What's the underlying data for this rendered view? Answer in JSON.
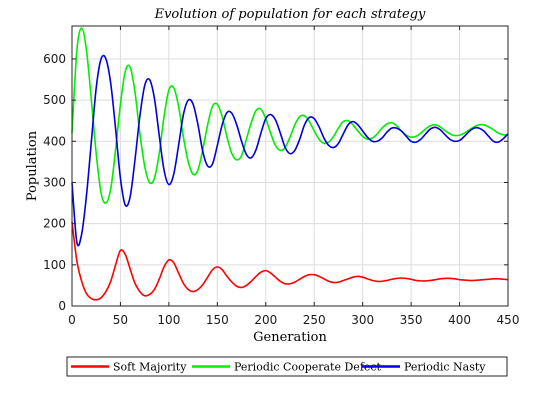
{
  "chart_data": {
    "type": "line",
    "title": "Evolution of population for each strategy",
    "xlabel": "Generation",
    "ylabel": "Population",
    "xlim": [
      0,
      450
    ],
    "ylim": [
      0,
      680
    ],
    "xticks": [
      0,
      50,
      100,
      150,
      200,
      250,
      300,
      350,
      400,
      450
    ],
    "yticks": [
      0,
      100,
      200,
      300,
      400,
      500,
      600
    ],
    "grid": true,
    "legend_position": "bottom",
    "series": [
      {
        "name": "Soft Majority",
        "color": "#ff0000",
        "x": [
          0,
          5,
          10,
          15,
          20,
          25,
          30,
          35,
          40,
          45,
          50,
          55,
          60,
          65,
          70,
          75,
          80,
          85,
          90,
          95,
          100,
          105,
          110,
          115,
          120,
          125,
          130,
          135,
          140,
          145,
          150,
          155,
          160,
          165,
          170,
          175,
          180,
          185,
          190,
          195,
          200,
          205,
          210,
          215,
          220,
          225,
          230,
          235,
          240,
          245,
          250,
          255,
          260,
          265,
          270,
          275,
          280,
          285,
          290,
          295,
          300,
          305,
          310,
          315,
          320,
          325,
          330,
          335,
          340,
          345,
          350,
          355,
          360,
          365,
          370,
          375,
          380,
          385,
          390,
          395,
          400,
          405,
          410,
          415,
          420,
          425,
          430,
          435,
          440,
          445,
          450
        ],
        "values": [
          205,
          110,
          60,
          30,
          18,
          15,
          20,
          35,
          60,
          100,
          135,
          125,
          90,
          55,
          35,
          25,
          28,
          40,
          65,
          95,
          112,
          105,
          80,
          55,
          40,
          35,
          40,
          52,
          70,
          88,
          95,
          88,
          72,
          58,
          48,
          45,
          50,
          60,
          72,
          82,
          86,
          80,
          70,
          60,
          54,
          54,
          58,
          65,
          72,
          76,
          76,
          72,
          66,
          60,
          57,
          58,
          62,
          66,
          70,
          72,
          70,
          66,
          62,
          60,
          60,
          62,
          65,
          67,
          68,
          67,
          65,
          62,
          61,
          61,
          62,
          64,
          66,
          67,
          67,
          66,
          64,
          63,
          62,
          62,
          63,
          64,
          65,
          66,
          66,
          65,
          64
        ]
      },
      {
        "name": "Periodic Cooperate Defect",
        "color": "#00ee00",
        "x": [
          0,
          5,
          10,
          15,
          20,
          25,
          30,
          35,
          40,
          45,
          50,
          55,
          60,
          65,
          70,
          75,
          80,
          85,
          90,
          95,
          100,
          105,
          110,
          115,
          120,
          125,
          130,
          135,
          140,
          145,
          150,
          155,
          160,
          165,
          170,
          175,
          180,
          185,
          190,
          195,
          200,
          205,
          210,
          215,
          220,
          225,
          230,
          235,
          240,
          245,
          250,
          255,
          260,
          265,
          270,
          275,
          280,
          285,
          290,
          295,
          300,
          305,
          310,
          315,
          320,
          325,
          330,
          335,
          340,
          345,
          350,
          355,
          360,
          365,
          370,
          375,
          380,
          385,
          390,
          395,
          400,
          405,
          410,
          415,
          420,
          425,
          430,
          435,
          440,
          445,
          450
        ],
        "values": [
          420,
          620,
          675,
          620,
          500,
          370,
          275,
          250,
          285,
          380,
          490,
          570,
          580,
          520,
          420,
          340,
          300,
          310,
          370,
          460,
          525,
          530,
          485,
          410,
          350,
          320,
          330,
          380,
          440,
          485,
          490,
          460,
          410,
          370,
          355,
          365,
          405,
          445,
          475,
          478,
          455,
          420,
          390,
          378,
          385,
          410,
          440,
          460,
          462,
          448,
          425,
          405,
          395,
          398,
          412,
          432,
          448,
          450,
          440,
          425,
          412,
          405,
          408,
          418,
          432,
          442,
          445,
          438,
          425,
          415,
          410,
          412,
          420,
          430,
          438,
          440,
          435,
          426,
          418,
          414,
          415,
          420,
          428,
          435,
          440,
          440,
          435,
          428,
          420,
          416,
          415
        ]
      },
      {
        "name": "Periodic Nasty",
        "color": "#0000dd",
        "x": [
          0,
          5,
          10,
          15,
          20,
          25,
          30,
          35,
          40,
          45,
          50,
          55,
          60,
          65,
          70,
          75,
          80,
          85,
          90,
          95,
          100,
          105,
          110,
          115,
          120,
          125,
          130,
          135,
          140,
          145,
          150,
          155,
          160,
          165,
          170,
          175,
          180,
          185,
          190,
          195,
          200,
          205,
          210,
          215,
          220,
          225,
          230,
          235,
          240,
          245,
          250,
          255,
          260,
          265,
          270,
          275,
          280,
          285,
          290,
          295,
          300,
          305,
          310,
          315,
          320,
          325,
          330,
          335,
          340,
          345,
          350,
          355,
          360,
          365,
          370,
          375,
          380,
          385,
          390,
          395,
          400,
          405,
          410,
          415,
          420,
          425,
          430,
          435,
          440,
          445,
          450
        ],
        "values": [
          300,
          155,
          175,
          270,
          400,
          530,
          600,
          600,
          540,
          430,
          310,
          245,
          265,
          355,
          460,
          535,
          550,
          505,
          415,
          330,
          295,
          320,
          390,
          465,
          500,
          490,
          440,
          375,
          340,
          345,
          390,
          440,
          470,
          468,
          440,
          400,
          368,
          360,
          380,
          420,
          455,
          465,
          452,
          420,
          385,
          370,
          378,
          405,
          440,
          458,
          455,
          435,
          408,
          390,
          385,
          395,
          418,
          440,
          448,
          440,
          425,
          410,
          400,
          400,
          408,
          422,
          432,
          432,
          425,
          412,
          400,
          398,
          405,
          418,
          430,
          434,
          428,
          416,
          405,
          400,
          402,
          412,
          424,
          432,
          432,
          425,
          412,
          400,
          398,
          406,
          418
        ]
      }
    ]
  }
}
